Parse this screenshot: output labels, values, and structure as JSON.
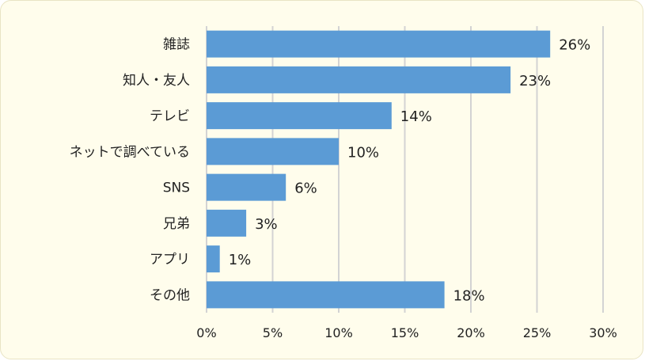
{
  "chart_data": {
    "type": "bar",
    "orientation": "horizontal",
    "categories": [
      "雑誌",
      "知人・友人",
      "テレビ",
      "ネットで調べている",
      "SNS",
      "兄弟",
      "アプリ",
      "その他"
    ],
    "values": [
      26,
      23,
      14,
      10,
      6,
      3,
      1,
      18
    ],
    "value_labels": [
      "26%",
      "23%",
      "14%",
      "10%",
      "6%",
      "3%",
      "1%",
      "18%"
    ],
    "x_ticks": [
      "0%",
      "5%",
      "10%",
      "15%",
      "20%",
      "25%",
      "30%"
    ],
    "xlim": [
      0,
      30
    ],
    "grid": true,
    "legend": "none",
    "title": "",
    "xlabel": "",
    "ylabel": "",
    "colors": {
      "bar": "#5b9bd5",
      "grid": "#d3d3d3",
      "background": "#fffdec"
    }
  }
}
